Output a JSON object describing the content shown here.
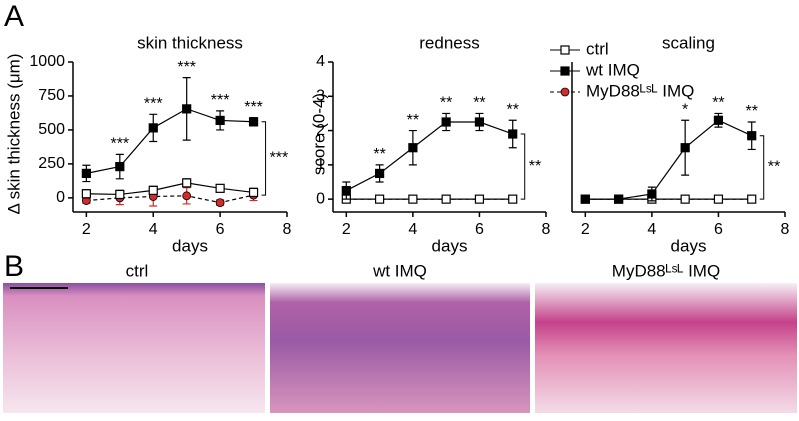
{
  "panels": {
    "a": "A",
    "b": "B"
  },
  "chart_data": [
    {
      "type": "line",
      "title": "skin thickness",
      "x_label": "days",
      "y_label": "Δ skin thickness (μm)",
      "x": [
        2,
        3,
        4,
        5,
        6,
        7
      ],
      "xlim": [
        1.6,
        8
      ],
      "xticks": [
        2,
        4,
        6,
        8
      ],
      "ylim": [
        -60,
        1000
      ],
      "yticks": [
        0,
        250,
        500,
        750,
        1000
      ],
      "series": [
        {
          "marker": "square-open",
          "color": "#000000",
          "dash": false,
          "values": [
            30,
            25,
            55,
            110,
            70,
            40
          ],
          "errors": [
            30,
            30,
            30,
            30,
            20,
            30
          ]
        },
        {
          "marker": "square",
          "color": "#000000",
          "dash": false,
          "values": [
            180,
            230,
            515,
            655,
            570,
            560
          ],
          "errors": [
            60,
            90,
            100,
            230,
            70,
            30
          ]
        },
        {
          "marker": "circle",
          "color": "#d42a2a",
          "dash": true,
          "values": [
            -20,
            0,
            10,
            15,
            -35,
            20
          ],
          "errors": [
            20,
            50,
            70,
            60,
            20,
            40
          ]
        }
      ],
      "annotations": [
        null,
        "***",
        "***",
        "***",
        "***",
        "***"
      ],
      "bracket_label": "***"
    },
    {
      "type": "line",
      "title": "redness",
      "x_label": "days",
      "y_label": "score (0-4)",
      "x": [
        2,
        3,
        4,
        5,
        6,
        7
      ],
      "xlim": [
        1.6,
        8
      ],
      "xticks": [
        2,
        4,
        6,
        8
      ],
      "ylim": [
        -0.2,
        4
      ],
      "yticks": [
        0,
        1,
        2,
        3,
        4
      ],
      "series": [
        {
          "marker": "square-open",
          "color": "#000000",
          "dash": false,
          "values": [
            0,
            0,
            0,
            0,
            0,
            0
          ],
          "errors": [
            0,
            0,
            0,
            0,
            0,
            0
          ]
        },
        {
          "marker": "square",
          "color": "#000000",
          "dash": false,
          "values": [
            0.25,
            0.75,
            1.5,
            2.25,
            2.25,
            1.9
          ],
          "errors": [
            0.25,
            0.25,
            0.5,
            0.25,
            0.25,
            0.4
          ]
        },
        {
          "marker": "circle",
          "color": "#d42a2a",
          "dash": true,
          "values": [
            0,
            0,
            0,
            0,
            0,
            0
          ],
          "errors": [
            0,
            0,
            0,
            0,
            0,
            0
          ]
        }
      ],
      "annotations": [
        null,
        "**",
        "**",
        "**",
        "**",
        "**"
      ],
      "bracket_label": "**"
    },
    {
      "type": "line",
      "title": "scaling",
      "x_label": "days",
      "x": [
        2,
        3,
        4,
        5,
        6,
        7
      ],
      "xlim": [
        1.6,
        8
      ],
      "xticks": [
        2,
        4,
        6,
        8
      ],
      "ylim": [
        -0.2,
        4
      ],
      "series": [
        {
          "name": "ctrl",
          "marker": "square-open",
          "color": "#000000",
          "dash": false,
          "values": [
            0,
            0,
            0,
            0,
            0,
            0
          ],
          "errors": [
            0,
            0,
            0,
            0,
            0,
            0
          ]
        },
        {
          "name": "wt IMQ",
          "marker": "square",
          "color": "#000000",
          "dash": false,
          "values": [
            0,
            0,
            0.15,
            1.5,
            2.3,
            1.85
          ],
          "errors": [
            0,
            0,
            0.2,
            0.8,
            0.2,
            0.4
          ]
        },
        {
          "name": "MyD88ᴸˢᴸ IMQ",
          "marker": "circle",
          "color": "#d42a2a",
          "dash": true,
          "values": [
            0,
            0,
            0,
            0,
            0,
            0
          ],
          "errors": [
            0,
            0,
            0,
            0,
            0,
            0
          ]
        }
      ],
      "annotations": [
        null,
        null,
        null,
        "*",
        "**",
        "**"
      ],
      "bracket_label": "**",
      "legend": "top-left"
    }
  ],
  "histology": {
    "captions": [
      "ctrl",
      "wt IMQ",
      "MyD88ᴸˢᴸ IMQ"
    ]
  }
}
